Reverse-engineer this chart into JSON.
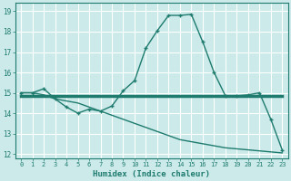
{
  "xlabel": "Humidex (Indice chaleur)",
  "bg_color": "#cceaea",
  "grid_color": "#ffffff",
  "line_color": "#1e7b6e",
  "x_ticks": [
    0,
    1,
    2,
    3,
    4,
    5,
    6,
    7,
    8,
    9,
    10,
    11,
    12,
    13,
    14,
    15,
    16,
    17,
    18,
    19,
    20,
    21,
    22,
    23
  ],
  "ylim": [
    11.8,
    19.4
  ],
  "xlim": [
    -0.5,
    23.5
  ],
  "y_ticks": [
    12,
    13,
    14,
    15,
    16,
    17,
    18,
    19
  ],
  "curve1_x": [
    0,
    1,
    2,
    3,
    4,
    5,
    6,
    7,
    8,
    9,
    10,
    11,
    12,
    13,
    14,
    15,
    16,
    17,
    18,
    19,
    20,
    21,
    22,
    23
  ],
  "curve1_y": [
    15.0,
    15.0,
    15.2,
    14.7,
    14.3,
    14.0,
    14.2,
    14.1,
    14.35,
    15.1,
    15.6,
    17.2,
    18.05,
    18.8,
    18.8,
    18.85,
    17.5,
    16.0,
    14.85,
    14.85,
    14.9,
    15.0,
    13.7,
    12.2
  ],
  "curve2_x": [
    0,
    1,
    2,
    3,
    4,
    5,
    6,
    7,
    8,
    9,
    10,
    11,
    12,
    13,
    14,
    15,
    16,
    17,
    18,
    19,
    20,
    21,
    22,
    23
  ],
  "curve2_y": [
    14.85,
    14.85,
    14.85,
    14.85,
    14.85,
    14.85,
    14.85,
    14.85,
    14.85,
    14.85,
    14.85,
    14.85,
    14.85,
    14.85,
    14.85,
    14.85,
    14.85,
    14.85,
    14.85,
    14.85,
    14.85,
    14.85,
    14.85,
    14.85
  ],
  "curve3_x": [
    0,
    1,
    2,
    3,
    4,
    5,
    6,
    7,
    8,
    9,
    10,
    11,
    12,
    13,
    14,
    15,
    16,
    17,
    18,
    19,
    20,
    21,
    22,
    23
  ],
  "curve3_y": [
    15.0,
    15.0,
    14.9,
    14.7,
    14.6,
    14.5,
    14.3,
    14.1,
    13.9,
    13.7,
    13.5,
    13.3,
    13.1,
    12.9,
    12.7,
    12.6,
    12.5,
    12.4,
    12.3,
    12.25,
    12.2,
    12.15,
    12.1,
    12.05
  ]
}
